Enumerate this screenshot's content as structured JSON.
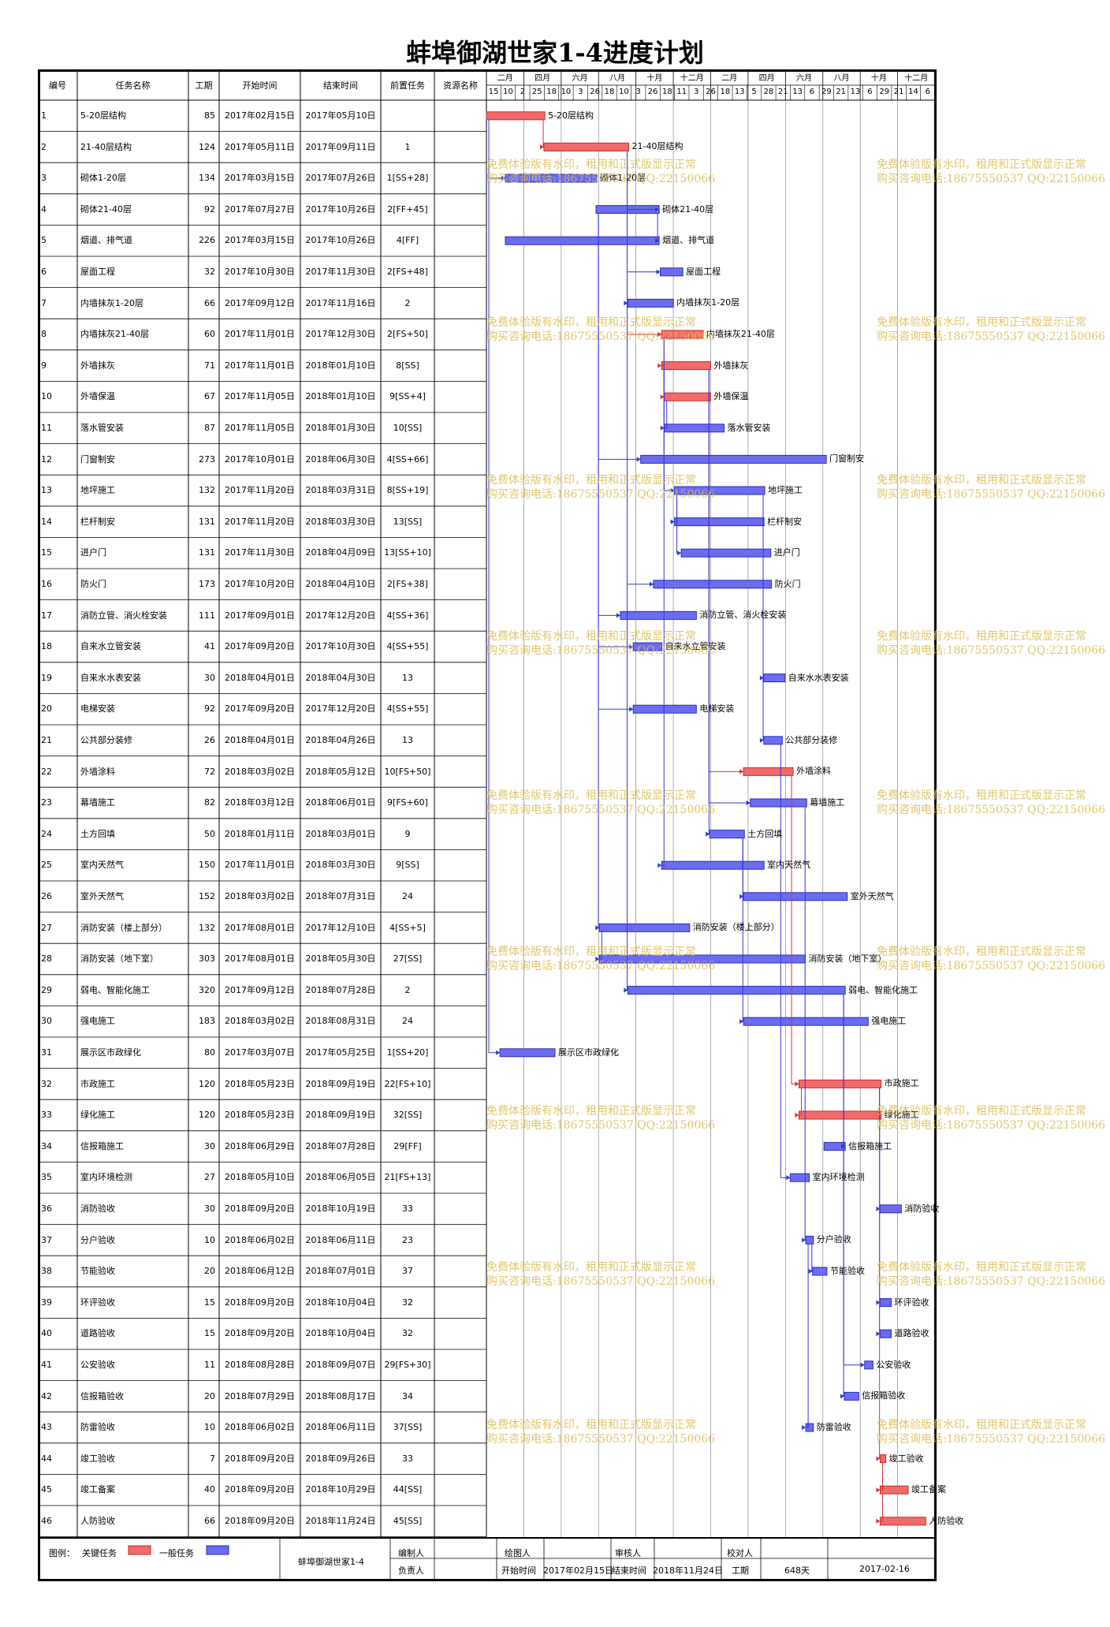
{
  "title": "蚌埠御湖世家1-4进度计划",
  "columns": [
    "编号",
    "任务名称",
    "工期",
    "开始时间",
    "结束时间",
    "前置任务",
    "资源名称"
  ],
  "timeline": {
    "months": [
      "二月",
      "四月",
      "六月",
      "八月",
      "十月",
      "十二月",
      "二月",
      "四月",
      "六月",
      "八月",
      "十月",
      "十二月"
    ],
    "days": [
      "15",
      "10",
      "2",
      "25",
      "18",
      "10",
      "3",
      "26",
      "18",
      "10",
      "3",
      "26",
      "18",
      "11",
      "3",
      "26",
      "18",
      "13",
      "5",
      "28",
      "21",
      "13",
      "6",
      "29",
      "21",
      "13",
      "6",
      "29",
      "21",
      "14",
      "6"
    ]
  },
  "chart_data": {
    "type": "gantt",
    "project_start": "2017-02-15",
    "x_range": [
      "2017-02-15",
      "2018-12-10"
    ],
    "tasks": [
      {
        "id": "1",
        "name": "5-20层结构",
        "dur": "85",
        "start": "2017年02月15日",
        "end": "2017年05月10日",
        "pred": "",
        "s": "2017-02-15",
        "e": "2017-05-10",
        "critical": true,
        "label": "5-20层结构"
      },
      {
        "id": "2",
        "name": "21-40层结构",
        "dur": "124",
        "start": "2017年05月11日",
        "end": "2017年09月11日",
        "pred": "1",
        "s": "2017-05-11",
        "e": "2017-09-11",
        "critical": true,
        "label": "21-40层结构"
      },
      {
        "id": "3",
        "name": "砌体1-20层",
        "dur": "134",
        "start": "2017年03月15日",
        "end": "2017年07月26日",
        "pred": "1[SS+28]",
        "s": "2017-03-15",
        "e": "2017-07-26",
        "critical": false,
        "label": "砌体1-20层"
      },
      {
        "id": "4",
        "name": "砌体21-40层",
        "dur": "92",
        "start": "2017年07月27日",
        "end": "2017年10月26日",
        "pred": "2[FF+45]",
        "s": "2017-07-27",
        "e": "2017-10-26",
        "critical": false,
        "label": "砌体21-40层"
      },
      {
        "id": "5",
        "name": "烟道、排气道",
        "dur": "226",
        "start": "2017年03月15日",
        "end": "2017年10月26日",
        "pred": "4[FF]",
        "s": "2017-03-15",
        "e": "2017-10-26",
        "critical": false,
        "label": "烟道、排气道"
      },
      {
        "id": "6",
        "name": "屋面工程",
        "dur": "32",
        "start": "2017年10月30日",
        "end": "2017年11月30日",
        "pred": "2[FS+48]",
        "s": "2017-10-30",
        "e": "2017-11-30",
        "critical": false,
        "label": "屋面工程"
      },
      {
        "id": "7",
        "name": "内墙抹灰1-20层",
        "dur": "66",
        "start": "2017年09月12日",
        "end": "2017年11月16日",
        "pred": "2",
        "s": "2017-09-12",
        "e": "2017-11-16",
        "critical": false,
        "label": "内墙抹灰1-20层"
      },
      {
        "id": "8",
        "name": "内墙抹灰21-40层",
        "dur": "60",
        "start": "2017年11月01日",
        "end": "2017年12月30日",
        "pred": "2[FS+50]",
        "s": "2017-11-01",
        "e": "2017-12-30",
        "critical": true,
        "label": "内墙抹灰21-40层"
      },
      {
        "id": "9",
        "name": "外墙抹灰",
        "dur": "71",
        "start": "2017年11月01日",
        "end": "2018年01月10日",
        "pred": "8[SS]",
        "s": "2017-11-01",
        "e": "2018-01-10",
        "critical": true,
        "label": "外墙抹灰"
      },
      {
        "id": "10",
        "name": "外墙保温",
        "dur": "67",
        "start": "2017年11月05日",
        "end": "2018年01月10日",
        "pred": "9[SS+4]",
        "s": "2017-11-05",
        "e": "2018-01-10",
        "critical": true,
        "label": "外墙保温"
      },
      {
        "id": "11",
        "name": "落水管安装",
        "dur": "87",
        "start": "2017年11月05日",
        "end": "2018年01月30日",
        "pred": "10[SS]",
        "s": "2017-11-05",
        "e": "2018-01-30",
        "critical": false,
        "label": "落水管安装"
      },
      {
        "id": "12",
        "name": "门窗制安",
        "dur": "273",
        "start": "2017年10月01日",
        "end": "2018年06月30日",
        "pred": "4[SS+66]",
        "s": "2017-10-01",
        "e": "2018-06-30",
        "critical": false,
        "label": "门窗制安"
      },
      {
        "id": "13",
        "name": "地坪施工",
        "dur": "132",
        "start": "2017年11月20日",
        "end": "2018年03月31日",
        "pred": "8[SS+19]",
        "s": "2017-11-20",
        "e": "2018-03-31",
        "critical": false,
        "label": "地坪施工"
      },
      {
        "id": "14",
        "name": "栏杆制安",
        "dur": "131",
        "start": "2017年11月20日",
        "end": "2018年03月30日",
        "pred": "13[SS]",
        "s": "2017-11-20",
        "e": "2018-03-30",
        "critical": false,
        "label": "栏杆制安"
      },
      {
        "id": "15",
        "name": "进户门",
        "dur": "131",
        "start": "2017年11月30日",
        "end": "2018年04月09日",
        "pred": "13[SS+10]",
        "s": "2017-11-30",
        "e": "2018-04-09",
        "critical": false,
        "label": "进户门"
      },
      {
        "id": "16",
        "name": "防火门",
        "dur": "173",
        "start": "2017年10月20日",
        "end": "2018年04月10日",
        "pred": "2[FS+38]",
        "s": "2017-10-20",
        "e": "2018-04-10",
        "critical": false,
        "label": "防火门"
      },
      {
        "id": "17",
        "name": "消防立管、消火栓安装",
        "dur": "111",
        "start": "2017年09月01日",
        "end": "2017年12月20日",
        "pred": "4[SS+36]",
        "s": "2017-09-01",
        "e": "2017-12-20",
        "critical": false,
        "label": "消防立管、消火栓安装"
      },
      {
        "id": "18",
        "name": "自来水立管安装",
        "dur": "41",
        "start": "2017年09月20日",
        "end": "2017年10月30日",
        "pred": "4[SS+55]",
        "s": "2017-09-20",
        "e": "2017-10-30",
        "critical": false,
        "label": "自来水立管安装"
      },
      {
        "id": "19",
        "name": "自来水水表安装",
        "dur": "30",
        "start": "2018年04月01日",
        "end": "2018年04月30日",
        "pred": "13",
        "s": "2018-04-01",
        "e": "2018-04-30",
        "critical": false,
        "label": "自来水水表安装"
      },
      {
        "id": "20",
        "name": "电梯安装",
        "dur": "92",
        "start": "2017年09月20日",
        "end": "2017年12月20日",
        "pred": "4[SS+55]",
        "s": "2017-09-20",
        "e": "2017-12-20",
        "critical": false,
        "label": "电梯安装"
      },
      {
        "id": "21",
        "name": "公共部分装修",
        "dur": "26",
        "start": "2018年04月01日",
        "end": "2018年04月26日",
        "pred": "13",
        "s": "2018-04-01",
        "e": "2018-04-26",
        "critical": false,
        "label": "公共部分装修"
      },
      {
        "id": "22",
        "name": "外墙涂料",
        "dur": "72",
        "start": "2018年03月02日",
        "end": "2018年05月12日",
        "pred": "10[FS+50]",
        "s": "2018-03-02",
        "e": "2018-05-12",
        "critical": true,
        "label": "外墙涂料"
      },
      {
        "id": "23",
        "name": "幕墙施工",
        "dur": "82",
        "start": "2018年03月12日",
        "end": "2018年06月01日",
        "pred": "9[FS+60]",
        "s": "2018-03-12",
        "e": "2018-06-01",
        "critical": false,
        "label": "幕墙施工"
      },
      {
        "id": "24",
        "name": "土方回填",
        "dur": "50",
        "start": "2018年01月11日",
        "end": "2018年03月01日",
        "pred": "9",
        "s": "2018-01-11",
        "e": "2018-03-01",
        "critical": false,
        "label": "土方回填"
      },
      {
        "id": "25",
        "name": "室内天然气",
        "dur": "150",
        "start": "2017年11月01日",
        "end": "2018年03月30日",
        "pred": "9[SS]",
        "s": "2017-11-01",
        "e": "2018-03-30",
        "critical": false,
        "label": "室内天然气"
      },
      {
        "id": "26",
        "name": "室外天然气",
        "dur": "152",
        "start": "2018年03月02日",
        "end": "2018年07月31日",
        "pred": "24",
        "s": "2018-03-02",
        "e": "2018-07-31",
        "critical": false,
        "label": "室外天然气"
      },
      {
        "id": "27",
        "name": "消防安装（楼上部分）",
        "dur": "132",
        "start": "2017年08月01日",
        "end": "2017年12月10日",
        "pred": "4[SS+5]",
        "s": "2017-08-01",
        "e": "2017-12-10",
        "critical": false,
        "label": "消防安装（楼上部分）"
      },
      {
        "id": "28",
        "name": "消防安装（地下室）",
        "dur": "303",
        "start": "2017年08月01日",
        "end": "2018年05月30日",
        "pred": "27[SS]",
        "s": "2017-08-01",
        "e": "2018-05-30",
        "critical": false,
        "label": "消防安装（地下室）"
      },
      {
        "id": "29",
        "name": "弱电、智能化施工",
        "dur": "320",
        "start": "2017年09月12日",
        "end": "2018年07月28日",
        "pred": "2",
        "s": "2017-09-12",
        "e": "2018-07-28",
        "critical": false,
        "label": "弱电、智能化施工"
      },
      {
        "id": "30",
        "name": "强电施工",
        "dur": "183",
        "start": "2018年03月02日",
        "end": "2018年08月31日",
        "pred": "24",
        "s": "2018-03-02",
        "e": "2018-08-31",
        "critical": false,
        "label": "强电施工"
      },
      {
        "id": "31",
        "name": "展示区市政绿化",
        "dur": "80",
        "start": "2017年03月07日",
        "end": "2017年05月25日",
        "pred": "1[SS+20]",
        "s": "2017-03-07",
        "e": "2017-05-25",
        "critical": false,
        "label": "展示区市政绿化"
      },
      {
        "id": "32",
        "name": "市政施工",
        "dur": "120",
        "start": "2018年05月23日",
        "end": "2018年09月19日",
        "pred": "22[FS+10]",
        "s": "2018-05-23",
        "e": "2018-09-19",
        "critical": true,
        "label": "市政施工"
      },
      {
        "id": "33",
        "name": "绿化施工",
        "dur": "120",
        "start": "2018年05月23日",
        "end": "2018年09月19日",
        "pred": "32[SS]",
        "s": "2018-05-23",
        "e": "2018-09-19",
        "critical": true,
        "label": "绿化施工"
      },
      {
        "id": "34",
        "name": "信报箱施工",
        "dur": "30",
        "start": "2018年06月29日",
        "end": "2018年07月28日",
        "pred": "29[FF]",
        "s": "2018-06-29",
        "e": "2018-07-28",
        "critical": false,
        "label": "信报箱施工"
      },
      {
        "id": "35",
        "name": "室内环境检测",
        "dur": "27",
        "start": "2018年05月10日",
        "end": "2018年06月05日",
        "pred": "21[FS+13]",
        "s": "2018-05-10",
        "e": "2018-06-05",
        "critical": false,
        "label": "室内环境检测"
      },
      {
        "id": "36",
        "name": "消防验收",
        "dur": "30",
        "start": "2018年09月20日",
        "end": "2018年10月19日",
        "pred": "33",
        "s": "2018-09-20",
        "e": "2018-10-19",
        "critical": false,
        "label": "消防验收"
      },
      {
        "id": "37",
        "name": "分户验收",
        "dur": "10",
        "start": "2018年06月02日",
        "end": "2018年06月11日",
        "pred": "23",
        "s": "2018-06-02",
        "e": "2018-06-11",
        "critical": false,
        "label": "分户验收"
      },
      {
        "id": "38",
        "name": "节能验收",
        "dur": "20",
        "start": "2018年06月12日",
        "end": "2018年07月01日",
        "pred": "37",
        "s": "2018-06-12",
        "e": "2018-07-01",
        "critical": false,
        "label": "节能验收"
      },
      {
        "id": "39",
        "name": "环评验收",
        "dur": "15",
        "start": "2018年09月20日",
        "end": "2018年10月04日",
        "pred": "32",
        "s": "2018-09-20",
        "e": "2018-10-04",
        "critical": false,
        "label": "环评验收"
      },
      {
        "id": "40",
        "name": "道路验收",
        "dur": "15",
        "start": "2018年09月20日",
        "end": "2018年10月04日",
        "pred": "32",
        "s": "2018-09-20",
        "e": "2018-10-04",
        "critical": false,
        "label": "道路验收"
      },
      {
        "id": "41",
        "name": "公安验收",
        "dur": "11",
        "start": "2018年08月28日",
        "end": "2018年09月07日",
        "pred": "29[FS+30]",
        "s": "2018-08-28",
        "e": "2018-09-07",
        "critical": false,
        "label": "公安验收"
      },
      {
        "id": "42",
        "name": "信报箱验收",
        "dur": "20",
        "start": "2018年07月29日",
        "end": "2018年08月17日",
        "pred": "34",
        "s": "2018-07-29",
        "e": "2018-08-17",
        "critical": false,
        "label": "信报箱验收"
      },
      {
        "id": "43",
        "name": "防雷验收",
        "dur": "10",
        "start": "2018年06月02日",
        "end": "2018年06月11日",
        "pred": "37[SS]",
        "s": "2018-06-02",
        "e": "2018-06-11",
        "critical": false,
        "label": "防雷验收"
      },
      {
        "id": "44",
        "name": "竣工验收",
        "dur": "7",
        "start": "2018年09月20日",
        "end": "2018年09月26日",
        "pred": "33",
        "s": "2018-09-20",
        "e": "2018-09-26",
        "critical": true,
        "label": "竣工验收"
      },
      {
        "id": "45",
        "name": "竣工备案",
        "dur": "40",
        "start": "2018年09月20日",
        "end": "2018年10月29日",
        "pred": "44[SS]",
        "s": "2018-09-20",
        "e": "2018-10-29",
        "critical": true,
        "label": "竣工备案"
      },
      {
        "id": "46",
        "name": "人防验收",
        "dur": "66",
        "start": "2018年09月20日",
        "end": "2018年11月24日",
        "pred": "45[SS]",
        "s": "2018-09-20",
        "e": "2018-11-24",
        "critical": true,
        "label": "人防验收"
      }
    ]
  },
  "watermark": {
    "line1": "免费体验版有水印，租用和正式版显示正常",
    "line2": "购买咨询电话:18675550537 QQ:22150066"
  },
  "footer": {
    "legend_label": "图例：",
    "critical_label": "关键任务",
    "normal_label": "一般任务",
    "project_name": "蚌埠御湖世家1-4",
    "editor_label": "编制人",
    "owner_label": "负责人",
    "drawer_label": "绘图人",
    "reviewer_label": "审核人",
    "checker_label": "校对人",
    "start_label": "开始时间",
    "start_value": "2017年02月15日",
    "end_label": "结束时间",
    "end_value": "2018年11月24日",
    "duration_label": "工期",
    "duration_value": "648天",
    "print_date": "2017-02-16",
    "critical_color": "#f26b6b",
    "normal_color": "#6c6cf0"
  }
}
